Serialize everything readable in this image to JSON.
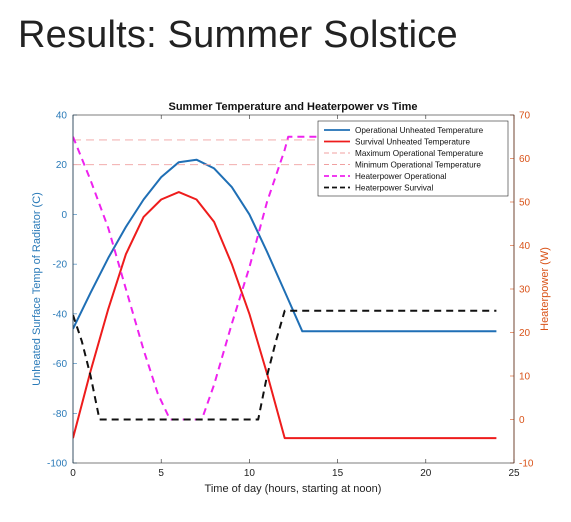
{
  "slide": {
    "title": "Results: Summer Solstice"
  },
  "chart_data": {
    "type": "line",
    "title": "Summer Temperature and Heaterpower vs Time",
    "xlabel": "Time of day (hours, starting at noon)",
    "ylabel_left": "Unheated Surface Temp of Radiator (C)",
    "ylabel_right": "Heaterpower (W)",
    "xlim": [
      0,
      25
    ],
    "ylim_left": [
      -100,
      40
    ],
    "ylim_right": [
      -10,
      70
    ],
    "x_ticks": [
      0,
      5,
      10,
      15,
      20,
      25
    ],
    "y_ticks_left": [
      -100,
      -80,
      -60,
      -40,
      -20,
      0,
      20,
      40
    ],
    "y_ticks_right": [
      -10,
      0,
      10,
      20,
      30,
      40,
      50,
      60,
      70
    ],
    "colors": {
      "left_axis": "#2a7ab8",
      "right_axis": "#d95319"
    },
    "legend_position": "top-right",
    "series": [
      {
        "name": "Operational Unheated Temperature",
        "axis": "left",
        "color": "#1f6fb5",
        "style": "solid",
        "x": [
          0,
          1,
          2,
          3,
          4,
          5,
          6,
          7,
          8,
          9,
          10,
          11,
          12,
          13,
          14,
          16,
          18,
          20,
          22,
          24
        ],
        "y": [
          -46,
          -31.5,
          -17.5,
          -5,
          6,
          15,
          21,
          22,
          18.5,
          11,
          0,
          -15,
          -31,
          -47,
          -47,
          -47,
          -47,
          -47,
          -47,
          -47
        ]
      },
      {
        "name": "Survival Unheated Temperature",
        "axis": "left",
        "color": "#ee1c1c",
        "style": "solid",
        "x": [
          0,
          1,
          2,
          3,
          4,
          5,
          6,
          7,
          8,
          9,
          10,
          11,
          12,
          12.5,
          14,
          16,
          18,
          20,
          22,
          24
        ],
        "y": [
          -90,
          -63,
          -38,
          -16,
          -1,
          6,
          9,
          6,
          -3,
          -20,
          -40,
          -64,
          -90,
          -90,
          -90,
          -90,
          -90,
          -90,
          -90,
          -90
        ]
      },
      {
        "name": "Maximum Operational Temperature",
        "axis": "left",
        "color": "#f0a0a0",
        "style": "dash",
        "x": [
          0,
          24
        ],
        "y": [
          30,
          30
        ]
      },
      {
        "name": "Minimum Operational Temperature",
        "axis": "left",
        "color": "#f0a0a0",
        "style": "dash",
        "x": [
          0,
          24
        ],
        "y": [
          20,
          20
        ]
      },
      {
        "name": "Heaterpower Operational",
        "axis": "right",
        "color": "#ee22ee",
        "style": "dash",
        "x": [
          0,
          1,
          2,
          3,
          4,
          4.8,
          5.5,
          6.5,
          7.3,
          8,
          9,
          10,
          11,
          12,
          12.2,
          13,
          24
        ],
        "y": [
          65,
          55,
          44,
          30,
          16,
          6,
          0,
          0,
          0,
          8,
          22,
          35,
          50,
          62,
          65,
          65,
          65
        ]
      },
      {
        "name": "Heaterpower Survival",
        "axis": "right",
        "color": "#111111",
        "style": "dash",
        "x": [
          0,
          0.5,
          1,
          1.5,
          10.5,
          11,
          11.5,
          12,
          24
        ],
        "y": [
          24,
          18,
          10,
          0,
          0,
          10,
          18,
          25,
          25
        ]
      }
    ]
  }
}
